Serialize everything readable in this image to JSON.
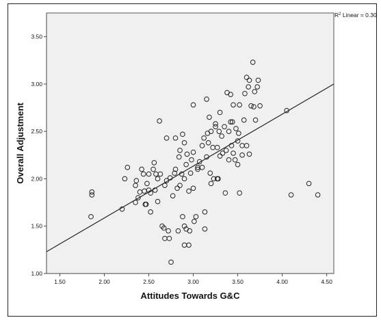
{
  "chart_data": {
    "type": "scatter",
    "title": "",
    "xlabel": "Attitudes Towards G&C",
    "ylabel": "Overall Adjustment",
    "xlim": [
      1.35,
      4.58
    ],
    "ylim": [
      1.0,
      3.75
    ],
    "x_ticks": [
      "1.50",
      "2.00",
      "2.50",
      "3.00",
      "3.50",
      "4.00",
      "4.50"
    ],
    "y_ticks": [
      "1.00",
      "1.50",
      "2.00",
      "2.50",
      "3.00",
      "3.50"
    ],
    "grid": false,
    "legend": "none",
    "fit_line": {
      "label": "R² Linear = 0.30",
      "label_prefix": "R",
      "label_sup": "2",
      "label_suffix": " Linear = 0.30",
      "points": [
        [
          1.35,
          1.23
        ],
        [
          4.58,
          3.0
        ]
      ]
    },
    "points": [
      [
        1.85,
        1.6
      ],
      [
        1.86,
        1.83
      ],
      [
        1.86,
        1.86
      ],
      [
        2.2,
        1.68
      ],
      [
        2.23,
        2.0
      ],
      [
        2.26,
        2.12
      ],
      [
        2.35,
        1.75
      ],
      [
        2.35,
        1.93
      ],
      [
        2.36,
        1.98
      ],
      [
        2.38,
        1.8
      ],
      [
        2.4,
        1.86
      ],
      [
        2.42,
        2.1
      ],
      [
        2.44,
        2.05
      ],
      [
        2.45,
        1.87
      ],
      [
        2.46,
        1.73
      ],
      [
        2.48,
        1.95
      ],
      [
        2.5,
        2.05
      ],
      [
        2.5,
        1.88
      ],
      [
        2.52,
        1.85
      ],
      [
        2.52,
        1.65
      ],
      [
        2.55,
        2.1
      ],
      [
        2.56,
        2.17
      ],
      [
        2.58,
        2.05
      ],
      [
        2.6,
        2.0
      ],
      [
        2.62,
        2.61
      ],
      [
        2.63,
        2.05
      ],
      [
        2.65,
        1.5
      ],
      [
        2.67,
        1.48
      ],
      [
        2.68,
        1.37
      ],
      [
        2.7,
        1.98
      ],
      [
        2.7,
        2.43
      ],
      [
        2.72,
        1.45
      ],
      [
        2.73,
        1.37
      ],
      [
        2.74,
        2.01
      ],
      [
        2.75,
        1.12
      ],
      [
        2.77,
        1.82
      ],
      [
        2.8,
        2.1
      ],
      [
        2.8,
        2.43
      ],
      [
        2.82,
        1.9
      ],
      [
        2.83,
        1.45
      ],
      [
        2.85,
        1.93
      ],
      [
        2.85,
        2.3
      ],
      [
        2.87,
        2.05
      ],
      [
        2.88,
        1.6
      ],
      [
        2.88,
        2.47
      ],
      [
        2.9,
        1.5
      ],
      [
        2.9,
        2.38
      ],
      [
        2.9,
        2.0
      ],
      [
        2.9,
        1.3
      ],
      [
        2.92,
        1.47
      ],
      [
        2.92,
        2.15
      ],
      [
        2.95,
        1.87
      ],
      [
        2.95,
        1.3
      ],
      [
        2.96,
        1.45
      ],
      [
        2.97,
        2.06
      ],
      [
        2.98,
        2.2
      ],
      [
        3.0,
        2.28
      ],
      [
        3.0,
        2.78
      ],
      [
        3.0,
        1.9
      ],
      [
        3.01,
        1.55
      ],
      [
        3.03,
        1.6
      ],
      [
        3.05,
        2.1
      ],
      [
        3.07,
        2.18
      ],
      [
        3.1,
        2.12
      ],
      [
        3.1,
        2.35
      ],
      [
        3.12,
        2.43
      ],
      [
        3.13,
        1.65
      ],
      [
        3.13,
        1.47
      ],
      [
        3.15,
        2.84
      ],
      [
        3.15,
        2.23
      ],
      [
        3.17,
        2.38
      ],
      [
        3.18,
        2.65
      ],
      [
        3.19,
        2.06
      ],
      [
        3.2,
        1.95
      ],
      [
        3.2,
        2.5
      ],
      [
        3.22,
        2.33
      ],
      [
        3.23,
        2.0
      ],
      [
        3.25,
        2.55
      ],
      [
        3.25,
        2.58
      ],
      [
        3.27,
        2.0
      ],
      [
        3.27,
        2.33
      ],
      [
        3.29,
        2.5
      ],
      [
        3.3,
        2.7
      ],
      [
        3.3,
        2.24
      ],
      [
        3.32,
        2.45
      ],
      [
        3.33,
        2.27
      ],
      [
        3.35,
        2.55
      ],
      [
        3.37,
        2.3
      ],
      [
        3.38,
        2.91
      ],
      [
        3.4,
        2.5
      ],
      [
        3.4,
        2.2
      ],
      [
        3.42,
        2.6
      ],
      [
        3.42,
        2.89
      ],
      [
        3.43,
        2.35
      ],
      [
        3.45,
        2.27
      ],
      [
        3.45,
        2.78
      ],
      [
        3.47,
        2.2
      ],
      [
        3.48,
        2.53
      ],
      [
        3.5,
        2.4
      ],
      [
        3.5,
        2.15
      ],
      [
        3.51,
        2.48
      ],
      [
        3.52,
        2.78
      ],
      [
        3.55,
        2.35
      ],
      [
        3.55,
        2.25
      ],
      [
        3.57,
        2.62
      ],
      [
        3.58,
        2.9
      ],
      [
        3.6,
        3.07
      ],
      [
        3.6,
        2.35
      ],
      [
        3.62,
        2.97
      ],
      [
        3.63,
        3.04
      ],
      [
        3.65,
        2.77
      ],
      [
        3.67,
        3.23
      ],
      [
        3.68,
        2.76
      ],
      [
        3.69,
        2.92
      ],
      [
        3.7,
        2.62
      ],
      [
        3.72,
        2.97
      ],
      [
        3.73,
        3.04
      ],
      [
        3.75,
        2.77
      ],
      [
        4.05,
        2.72
      ],
      [
        4.1,
        1.83
      ],
      [
        4.3,
        1.95
      ],
      [
        4.4,
        1.83
      ],
      [
        2.57,
        1.88
      ],
      [
        2.68,
        1.93
      ],
      [
        2.93,
        2.26
      ],
      [
        3.05,
        2.12
      ],
      [
        3.28,
        2.0
      ],
      [
        3.36,
        1.85
      ],
      [
        3.52,
        1.85
      ],
      [
        3.63,
        2.26
      ],
      [
        3.44,
        2.6
      ],
      [
        3.16,
        2.48
      ],
      [
        2.84,
        2.23
      ],
      [
        2.79,
        2.06
      ],
      [
        2.6,
        1.76
      ],
      [
        2.47,
        1.73
      ]
    ]
  }
}
